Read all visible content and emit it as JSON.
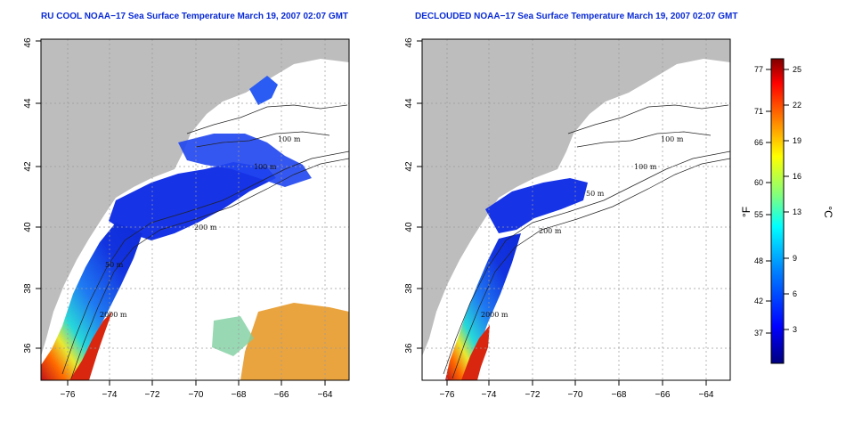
{
  "maps": [
    {
      "title": "RU COOL NOAA−17 Sea Surface Temperature March 19, 2007 02:07 GMT",
      "contour_labels": [
        "100 m",
        "100 m",
        "200 m",
        "50 m",
        "2000 m"
      ]
    },
    {
      "title": "DECLOUDED NOAA−17 Sea Surface Temperature March 19, 2007 02:07 GMT",
      "contour_labels": [
        "100 m",
        "100 m",
        "50 m",
        "200 m",
        "2000 m"
      ]
    }
  ],
  "axes": {
    "lat_ticks": [
      "36",
      "38",
      "40",
      "42",
      "44",
      "46"
    ],
    "lon_ticks": [
      "−76",
      "−74",
      "−72",
      "−70",
      "−68",
      "−66",
      "−64"
    ],
    "lat_range": [
      35,
      46
    ],
    "lon_range": [
      -77,
      -63
    ],
    "grid": "dotted"
  },
  "colorbar": {
    "unit_f": "°F",
    "unit_c": "°C",
    "f_labels": [
      "77",
      "71",
      "66",
      "60",
      "55",
      "48",
      "42",
      "37"
    ],
    "c_labels": [
      "25",
      "22",
      "19",
      "16",
      "13",
      "9",
      "6",
      "3"
    ],
    "range_c": [
      0,
      26
    ],
    "colors": [
      "#00007f",
      "#0000ff",
      "#007fff",
      "#00ffff",
      "#7fff7f",
      "#ffff00",
      "#ff7f00",
      "#ff0000",
      "#7f0000"
    ]
  },
  "colors": {
    "land": "#bdbdbd",
    "title": "#0a2bd6",
    "ocean_cold": "#1633e6",
    "ocean_warm": "#d9260f"
  }
}
